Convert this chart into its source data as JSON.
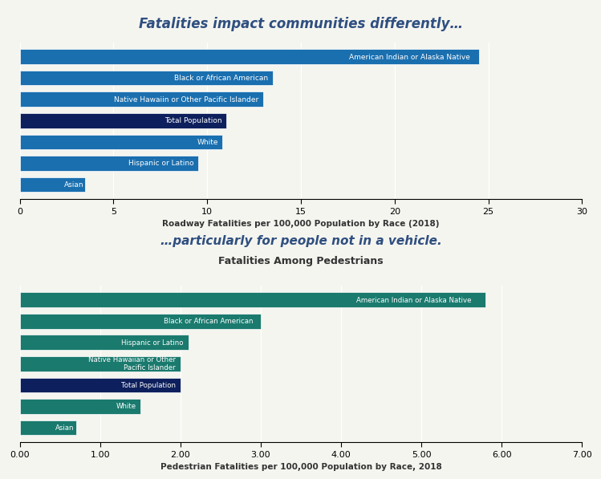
{
  "chart1": {
    "title": "Fatalities impact communities differently…",
    "xlabel": "Roadway Fatalities per 100,000 Population by Race (2018)",
    "categories": [
      "American Indian or Alaska Native",
      "Black or African American",
      "Native Hawaiin or Other Pacific Islander",
      "Total Population",
      "White",
      "Hispanic or Latino",
      "Asian"
    ],
    "values": [
      24.5,
      13.5,
      13.0,
      11.0,
      10.8,
      9.5,
      3.5
    ],
    "colors": [
      "#1a6faf",
      "#1a6faf",
      "#1a6faf",
      "#0d1f5c",
      "#1a6faf",
      "#1a6faf",
      "#1a6faf"
    ],
    "xlim": [
      0,
      30
    ],
    "xticks": [
      0,
      5,
      10,
      15,
      20,
      25,
      30
    ]
  },
  "chart2": {
    "title": "…particularly for people not in a vehicle.",
    "subtitle": "Fatalities Among Pedestrians",
    "xlabel": "Pedestrian Fatalities per 100,000 Population by Race, 2018",
    "categories": [
      "American Indian or Alaska Native",
      "Black or African American",
      "Hispanic or Latino",
      "Native Hawaiian or Other\nPacific Islander",
      "Total Population",
      "White",
      "Asian"
    ],
    "values": [
      5.8,
      3.0,
      2.1,
      2.0,
      2.0,
      1.5,
      0.7
    ],
    "colors": [
      "#1a7a6e",
      "#1a7a6e",
      "#1a7a6e",
      "#1a7a6e",
      "#0d1f5c",
      "#1a7a6e",
      "#1a7a6e"
    ],
    "xlim": [
      0,
      7.0
    ],
    "xticks": [
      0.0,
      1.0,
      2.0,
      3.0,
      4.0,
      5.0,
      6.0,
      7.0
    ]
  },
  "top_bar_color": "#1a6faf",
  "top_bar2_color": "#1a7a6e",
  "background_color": "#f5f5f0",
  "header_line_color": "#1a6faf",
  "title1_color": "#2f4f7f",
  "title2_color": "#2f4f7f"
}
